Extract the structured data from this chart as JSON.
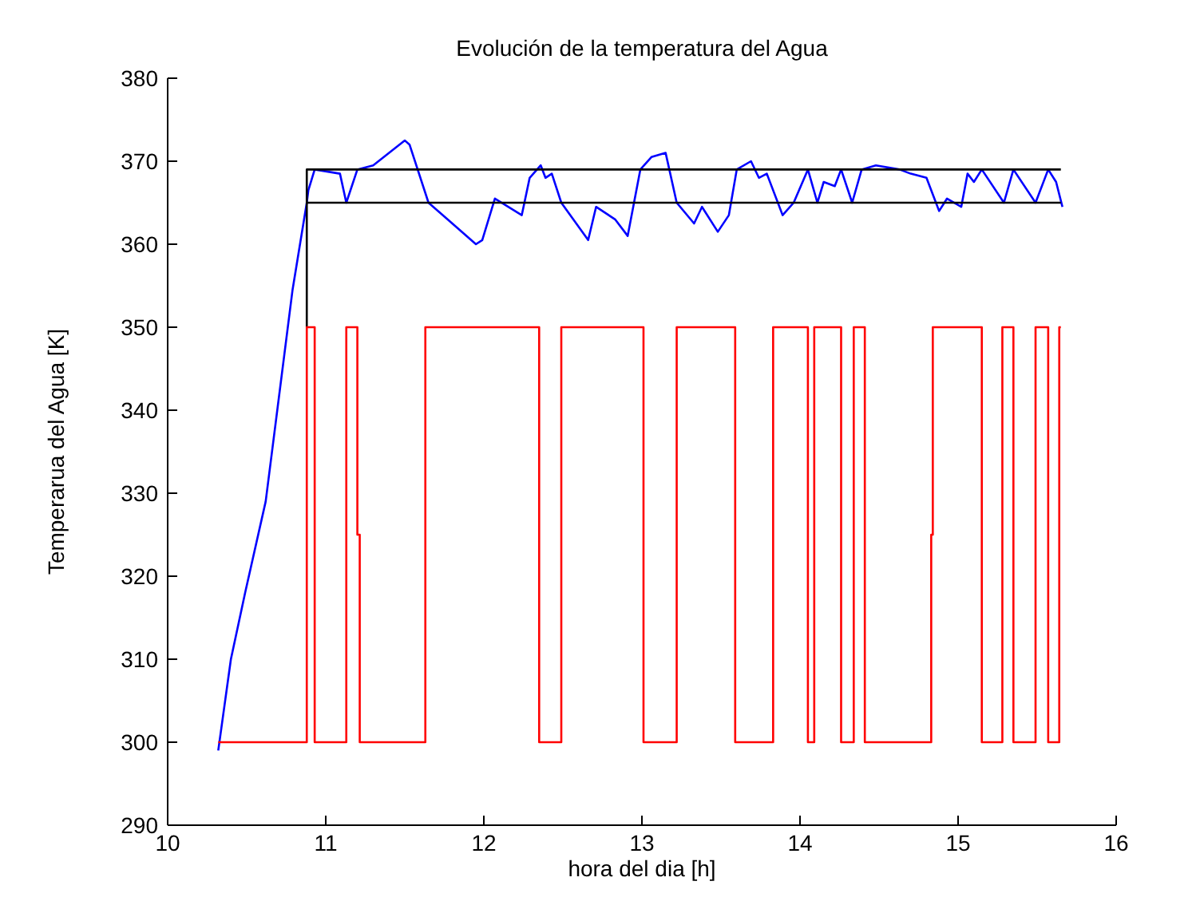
{
  "chart_data": {
    "type": "line",
    "title": "Evolución de la temperatura del Agua",
    "xlabel": "hora del dia [h]",
    "ylabel": "Temperarua del Agua [K]",
    "xlim": [
      10,
      16
    ],
    "xticks": [
      10,
      11,
      12,
      13,
      14,
      15,
      16
    ],
    "ylim": [
      290,
      380
    ],
    "yticks": [
      290,
      300,
      310,
      320,
      330,
      340,
      350,
      360,
      370,
      380
    ],
    "series": [
      {
        "color": "#0000ff",
        "x": [
          10.32,
          10.4,
          10.49,
          10.62,
          10.79,
          10.88,
          10.89,
          10.93,
          11.09,
          11.13,
          11.2,
          11.3,
          11.5,
          11.53,
          11.65,
          11.77,
          11.95,
          11.99,
          12.07,
          12.24,
          12.29,
          12.36,
          12.39,
          12.43,
          12.49,
          12.66,
          12.71,
          12.83,
          12.91,
          12.99,
          13.06,
          13.15,
          13.22,
          13.33,
          13.38,
          13.48,
          13.55,
          13.6,
          13.69,
          13.74,
          13.79,
          13.89,
          13.96,
          14.05,
          14.11,
          14.15,
          14.22,
          14.26,
          14.33,
          14.39,
          14.48,
          14.63,
          14.7,
          14.8,
          14.88,
          14.93,
          15.02,
          15.06,
          15.1,
          15.15,
          15.29,
          15.35,
          15.49,
          15.57,
          15.62,
          15.66
        ],
        "values": [
          299,
          310,
          318,
          329,
          354.5,
          365,
          366.5,
          369,
          368.5,
          365,
          369,
          369.5,
          372.5,
          372,
          365,
          363,
          360,
          360.5,
          365.5,
          363.5,
          368,
          369.5,
          368,
          368.5,
          365,
          360.5,
          364.5,
          363,
          361,
          369,
          370.5,
          371,
          365,
          362.5,
          364.5,
          361.5,
          363.5,
          369,
          370,
          368,
          368.5,
          363.5,
          365,
          369,
          365,
          367.5,
          367,
          369,
          365,
          369,
          369.5,
          369,
          368.5,
          368,
          364,
          365.5,
          364.5,
          368.5,
          367.5,
          369,
          365,
          369,
          365,
          369,
          367.5,
          364.5
        ]
      },
      {
        "color": "#000000",
        "x": [
          10.88,
          10.88,
          15.65
        ],
        "values": [
          350,
          369,
          369
        ]
      },
      {
        "color": "#000000",
        "x": [
          10.88,
          15.65
        ],
        "values": [
          365,
          365
        ]
      },
      {
        "type": "step",
        "color": "#ff0000",
        "x": [
          10.32,
          10.88,
          10.93,
          11.13,
          11.2,
          11.215,
          11.63,
          12.35,
          12.49,
          13.01,
          13.22,
          13.59,
          13.83,
          14.05,
          14.09,
          14.26,
          14.34,
          14.41,
          14.83,
          14.84,
          15.15,
          15.28,
          15.35,
          15.49,
          15.57,
          15.64,
          15.65
        ],
        "values": [
          300,
          350,
          300,
          350,
          325,
          300,
          350,
          300,
          350,
          300,
          350,
          300,
          350,
          300,
          350,
          300,
          350,
          300,
          325,
          350,
          300,
          350,
          300,
          350,
          300,
          350,
          350
        ]
      }
    ]
  }
}
